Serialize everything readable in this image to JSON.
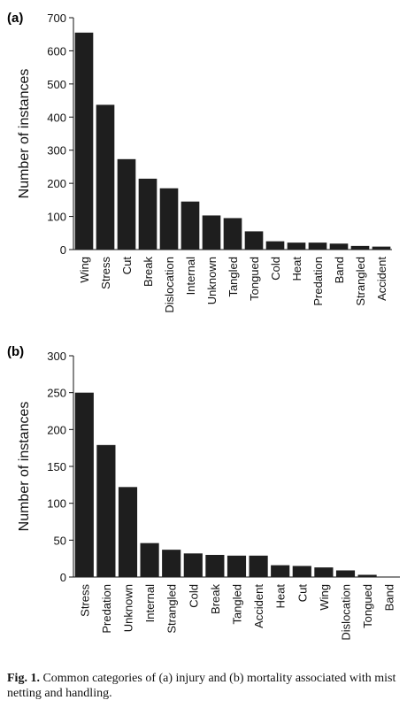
{
  "chart_data": [
    {
      "type": "bar",
      "panel_label": "(a)",
      "ylabel": "Number of instances",
      "ylim": [
        0,
        700
      ],
      "yticks": [
        0,
        100,
        200,
        300,
        400,
        500,
        600,
        700
      ],
      "categories": [
        "Wing",
        "Stress",
        "Cut",
        "Break",
        "Dislocation",
        "Internal",
        "Unknown",
        "Tangled",
        "Tongued",
        "Cold",
        "Heat",
        "Predation",
        "Band",
        "Strangled",
        "Accident"
      ],
      "values": [
        655,
        437,
        273,
        214,
        185,
        145,
        103,
        95,
        55,
        25,
        21,
        21,
        18,
        11,
        9
      ],
      "grid": false,
      "bar_color": "#1e1e1e"
    },
    {
      "type": "bar",
      "panel_label": "(b)",
      "ylabel": "Number of instances",
      "ylim": [
        0,
        300
      ],
      "yticks": [
        0,
        50,
        100,
        150,
        200,
        250,
        300
      ],
      "categories": [
        "Stress",
        "Predation",
        "Unknown",
        "Internal",
        "Strangled",
        "Cold",
        "Break",
        "Tangled",
        "Accident",
        "Heat",
        "Cut",
        "Wing",
        "Dislocation",
        "Tongued",
        "Band"
      ],
      "values": [
        250,
        179,
        122,
        46,
        37,
        32,
        30,
        29,
        29,
        16,
        15,
        13,
        9,
        3,
        0
      ],
      "grid": false,
      "bar_color": "#1e1e1e"
    }
  ],
  "caption": {
    "label": "Fig. 1.",
    "text": " Common categories of (a) injury and (b) mortality associated with mist netting and handling."
  }
}
